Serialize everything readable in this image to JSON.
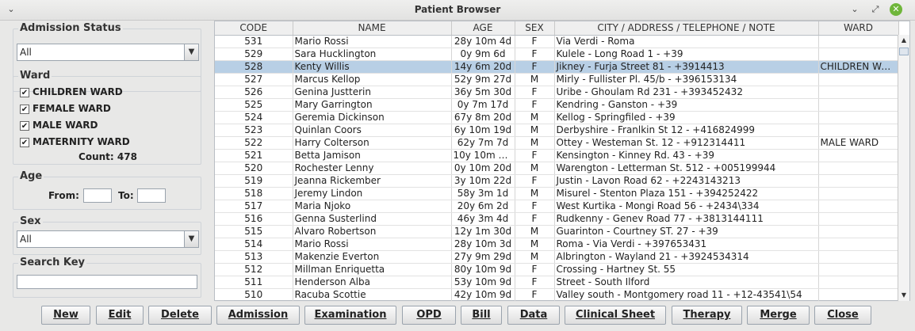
{
  "window": {
    "title": "Patient Browser"
  },
  "filters": {
    "admission_status": {
      "label": "Admission Status",
      "value": "All"
    },
    "ward": {
      "label": "Ward",
      "options": [
        "CHILDREN WARD",
        "FEMALE WARD",
        "MALE WARD",
        "MATERNITY WARD"
      ],
      "checked": [
        true,
        true,
        true,
        true
      ],
      "count_label": "Count: 478"
    },
    "age": {
      "label": "Age",
      "from_label": "From:",
      "to_label": "To:",
      "from_value": "",
      "to_value": ""
    },
    "sex": {
      "label": "Sex",
      "value": "All"
    },
    "search": {
      "label": "Search Key",
      "value": ""
    }
  },
  "table": {
    "columns": [
      "CODE",
      "NAME",
      "AGE",
      "SEX",
      "CITY / ADDRESS / TELEPHONE / NOTE",
      "WARD"
    ],
    "selected_row": 2,
    "rows": [
      [
        "531",
        "Mario Rossi",
        "28y 10m 4d",
        "F",
        "Via Verdi - Roma",
        ""
      ],
      [
        "529",
        "Sara Hucklington",
        "0y 9m 6d",
        "F",
        "Kulele - Long Road 1 - +39",
        ""
      ],
      [
        "528",
        "Kenty Willis",
        "14y 6m 20d",
        "F",
        "Jikney - Furja Street 81 - +3914413",
        "CHILDREN WA..."
      ],
      [
        "527",
        "Marcus Kellop",
        "52y 9m 27d",
        "M",
        "Mirly - Fullister Pl. 45/b - +396153134",
        ""
      ],
      [
        "526",
        "Genina Justterin",
        "36y 5m 30d",
        "F",
        "Uribe - Ghoulam Rd 231 - +393452432",
        ""
      ],
      [
        "525",
        "Mary Garrington",
        "0y 7m 17d",
        "F",
        "Kendring - Ganston - +39",
        ""
      ],
      [
        "524",
        "Geremia Dickinson",
        "67y 8m 20d",
        "M",
        "Kellog - Springfiled - +39",
        ""
      ],
      [
        "523",
        "Quinlan Coors",
        "6y 10m 19d",
        "M",
        "Derbyshire - Franlkin St 12 - +416824999",
        ""
      ],
      [
        "522",
        "Harry Colterson",
        "62y 7m 7d",
        "M",
        "Ottey - Westeman St. 12 - +912314411",
        "MALE WARD"
      ],
      [
        "521",
        "Betta Jamison",
        "10y 10m 1...",
        "F",
        "Kensington - Kinney Rd. 43 - +39",
        ""
      ],
      [
        "520",
        "Rochester Lenny",
        "0y 10m 20d",
        "M",
        "Warengton - Letterman St. 512 - +005199944",
        ""
      ],
      [
        "519",
        "Jeanna Rickember",
        "3y 10m 22d",
        "F",
        "Justin - Lavon Road 62 - +2243143213",
        ""
      ],
      [
        "518",
        "Jeremy Lindon",
        "58y 3m 1d",
        "M",
        "Misurel - Stenton Plaza 151 - +394252422",
        ""
      ],
      [
        "517",
        "Maria Njoko",
        "20y 6m 2d",
        "F",
        "West Kurtika - Mongi Road 56 - +2434\\334",
        ""
      ],
      [
        "516",
        "Genna Susterlind",
        "46y 3m 4d",
        "F",
        "Rudkenny - Genev Road 77 - +3813144111",
        ""
      ],
      [
        "515",
        "Alvaro Robertson",
        "12y 1m 30d",
        "M",
        "Guarinton - Courtney ST. 27 - +39",
        ""
      ],
      [
        "514",
        "Mario Rossi",
        "28y 10m 3d",
        "M",
        "Roma - Via Verdi - +397653431",
        ""
      ],
      [
        "513",
        "Makenzie Everton",
        "27y 9m 29d",
        "M",
        "Albrington - Wayland 21 - +3924534314",
        ""
      ],
      [
        "512",
        "Millman Enriquetta",
        "80y 10m 9d",
        "F",
        "Crossing - Hartney St. 55",
        ""
      ],
      [
        "511",
        "Henderson Alba",
        "53y 10m 9d",
        "F",
        "Street - South Ilford",
        ""
      ],
      [
        "510",
        "Racuba Scottie",
        "42y 10m 9d",
        "F",
        "Valley south - Montgomery road 11 - +12-43541\\54",
        ""
      ]
    ]
  },
  "buttons": [
    "New",
    "Edit",
    "Delete",
    "Admission",
    "Examination",
    "OPD",
    "Bill",
    "Data",
    "Clinical Sheet",
    "Therapy",
    "Merge",
    "Close"
  ]
}
